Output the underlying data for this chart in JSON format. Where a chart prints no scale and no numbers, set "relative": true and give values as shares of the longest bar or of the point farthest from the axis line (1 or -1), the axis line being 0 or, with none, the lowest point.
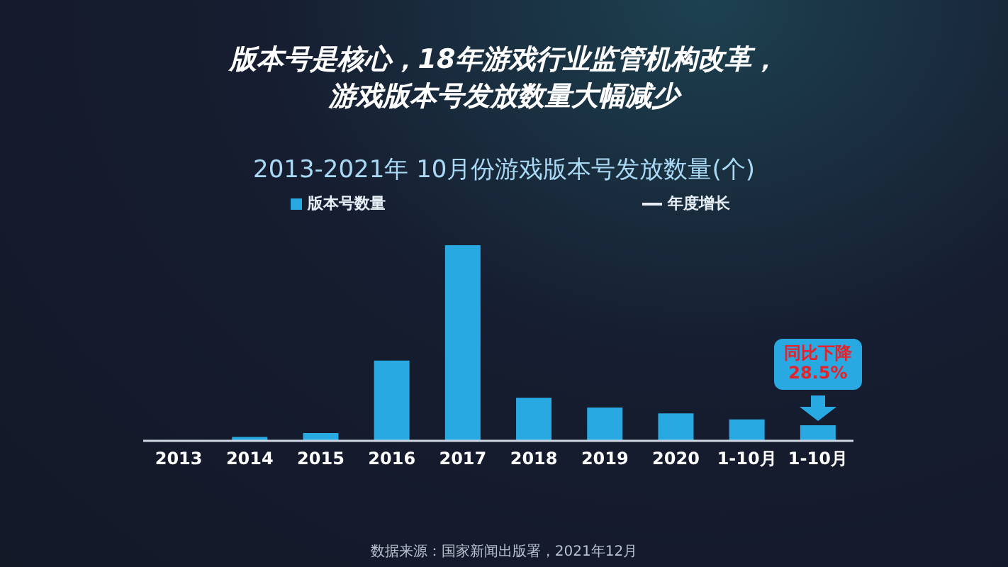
{
  "chart_data": {
    "type": "bar",
    "title": "版本号是核心，18年游戏行业监管机构改革，游戏版本号发放数量大幅减少",
    "subtitle": "2013-2021年 10月份游戏版本号发放数量(个)",
    "categories": [
      "2013",
      "2014",
      "2015",
      "2016",
      "2017",
      "2018",
      "2019",
      "2020",
      "1-10月",
      "1-10月"
    ],
    "series": [
      {
        "name": "版本号数量",
        "color": "#29a9e1",
        "values": [
          0,
          0.02,
          0.04,
          0.41,
          1,
          0.22,
          0.17,
          0.14,
          0.11,
          0.08
        ]
      },
      {
        "name": "年度增长",
        "type": "line",
        "color": "#e6edf5",
        "values": [
          null,
          null,
          null,
          null,
          null,
          null,
          null,
          null,
          null,
          null
        ]
      }
    ],
    "relative": true,
    "legend": "top",
    "annotations": [
      "同比下降28.5%",
      "数据来源：国家新闻出版署，2021年12月"
    ]
  }
}
